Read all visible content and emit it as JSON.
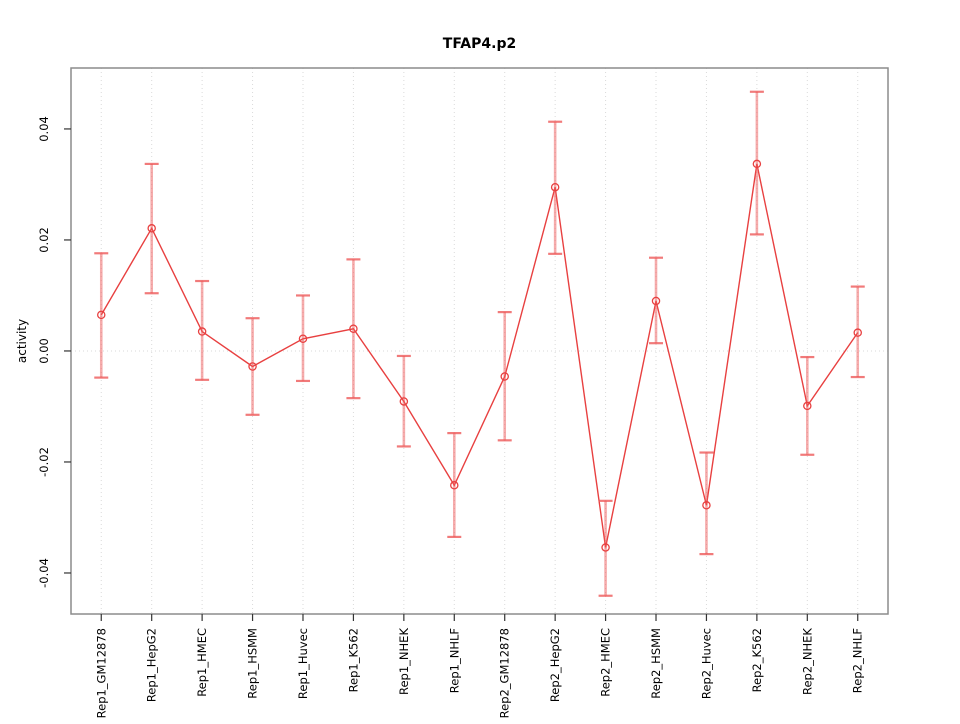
{
  "title": "TFAP4.p2",
  "chart_data": {
    "type": "line",
    "title": "TFAP4.p2",
    "xlabel": "",
    "ylabel": "activity",
    "categories": [
      "Rep1_GM12878",
      "Rep1_HepG2",
      "Rep1_HMEC",
      "Rep1_HSMM",
      "Rep1_Huvec",
      "Rep1_K562",
      "Rep1_NHEK",
      "Rep1_NHLF",
      "Rep2_GM12878",
      "Rep2_HepG2",
      "Rep2_HMEC",
      "Rep2_HSMM",
      "Rep2_Huvec",
      "Rep2_K562",
      "Rep2_NHEK",
      "Rep2_NHLF"
    ],
    "series": [
      {
        "name": "activity",
        "values": [
          0.0065,
          0.0221,
          0.0035,
          -0.0028,
          0.0022,
          0.004,
          -0.0091,
          -0.0242,
          -0.0046,
          0.0295,
          -0.0354,
          0.009,
          -0.0278,
          0.0337,
          -0.0099,
          0.0033
        ],
        "lower": [
          -0.0048,
          0.0104,
          -0.0052,
          -0.0115,
          -0.0054,
          -0.0085,
          -0.0172,
          -0.0335,
          -0.0161,
          0.0175,
          -0.0441,
          0.0014,
          -0.0366,
          0.021,
          -0.0187,
          -0.0047
        ],
        "upper": [
          0.0176,
          0.0337,
          0.0126,
          0.0059,
          0.01,
          0.0165,
          -0.0009,
          -0.0148,
          0.007,
          0.0413,
          -0.027,
          0.0168,
          -0.0183,
          0.0467,
          -0.0011,
          0.0116
        ]
      }
    ],
    "yticks": [
      -0.04,
      -0.02,
      0,
      0.02,
      0.04
    ],
    "ytick_labels": [
      "-0.04",
      "-0.02",
      "0.00",
      "0.02",
      "0.04"
    ],
    "ylim": [
      -0.04739,
      0.05098
    ],
    "grid": "vertical dotted gridline at each category; horizontal dotted line at y=0",
    "legend": "none",
    "marker": "open-circle",
    "colors": {
      "line": "#e84040",
      "point": "#e84040",
      "errorbar": "#ee5a5a",
      "grid": "#dadada",
      "frame": "#8c8c8c",
      "tick": "#333333",
      "background": "#ffffff"
    }
  }
}
